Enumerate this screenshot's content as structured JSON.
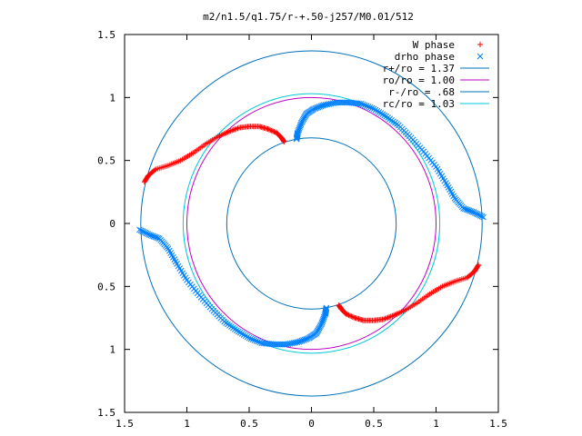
{
  "colors": {
    "w_phase": "#ff0000",
    "drho_phase": "#0080ff",
    "r_plus": "#0070b8",
    "ro": "#c000c0",
    "r_minus": "#0070b8",
    "rc": "#00c8d8",
    "axis": "#000000"
  },
  "chart_data": {
    "type": "scatter",
    "title": "m2/n1.5/q1.75/r-+.50-j257/M0.01/512",
    "xlabel": "",
    "ylabel": "",
    "xlim": [
      -1.5,
      1.5
    ],
    "ylim": [
      -1.5,
      1.5
    ],
    "grid": false,
    "legend_position": "top-right",
    "xtick_values": [
      -1.5,
      -1,
      -0.5,
      0,
      0.5,
      1,
      1.5
    ],
    "xtick_labels": [
      "1.5",
      "1",
      "0.5",
      "0",
      "0.5",
      "1",
      "1.5"
    ],
    "ytick_values": [
      1.5,
      1,
      0.5,
      0,
      -0.5,
      -1,
      -1.5
    ],
    "ytick_labels": [
      "1.5",
      "1",
      "0.5",
      "0",
      "0.5",
      "1",
      "1.5"
    ],
    "legend": [
      {
        "label": "W phase",
        "style": "plus",
        "color_key": "w_phase"
      },
      {
        "label": "drho phase",
        "style": "cross",
        "color_key": "drho_phase"
      },
      {
        "label": "r+/ro = 1.37",
        "style": "line",
        "color_key": "r_plus"
      },
      {
        "label": "ro/ro = 1.00",
        "style": "line",
        "color_key": "ro"
      },
      {
        "label": "r-/ro = .68",
        "style": "line",
        "color_key": "r_minus"
      },
      {
        "label": "rc/ro = 1.03",
        "style": "line",
        "color_key": "rc"
      }
    ],
    "circles": [
      {
        "name": "r+/ro",
        "radius": 1.37,
        "color_key": "r_plus"
      },
      {
        "name": "ro/ro",
        "radius": 1.0,
        "color_key": "ro"
      },
      {
        "name": "r-/ro",
        "radius": 0.68,
        "color_key": "r_minus"
      },
      {
        "name": "rc/ro",
        "radius": 1.03,
        "color_key": "rc"
      }
    ],
    "series": [
      {
        "name": "W phase",
        "marker": "plus",
        "color_key": "w_phase",
        "x": [
          -1.34,
          -1.31,
          -1.25,
          -1.15,
          -1.05,
          -0.95,
          -0.85,
          -0.75,
          -0.66,
          -0.58,
          -0.5,
          -0.42,
          -0.35,
          -0.28,
          -0.24,
          -0.22,
          1.34,
          1.31,
          1.25,
          1.15,
          1.05,
          0.95,
          0.85,
          0.75,
          0.66,
          0.58,
          0.5,
          0.42,
          0.35,
          0.28,
          0.24,
          0.22
        ],
        "y": [
          0.33,
          0.38,
          0.43,
          0.46,
          0.5,
          0.56,
          0.63,
          0.69,
          0.73,
          0.76,
          0.77,
          0.77,
          0.75,
          0.72,
          0.68,
          0.65,
          -0.33,
          -0.38,
          -0.43,
          -0.46,
          -0.5,
          -0.56,
          -0.63,
          -0.69,
          -0.73,
          -0.76,
          -0.77,
          -0.77,
          -0.75,
          -0.72,
          -0.68,
          -0.65
        ]
      },
      {
        "name": "drho phase",
        "marker": "cross",
        "color_key": "drho_phase",
        "x": [
          -0.12,
          -0.11,
          -0.08,
          -0.04,
          0.02,
          0.1,
          0.2,
          0.3,
          0.4,
          0.5,
          0.6,
          0.7,
          0.8,
          0.9,
          1.0,
          1.08,
          1.15,
          1.22,
          1.3,
          1.38,
          0.12,
          0.11,
          0.08,
          0.04,
          -0.02,
          -0.1,
          -0.2,
          -0.3,
          -0.4,
          -0.5,
          -0.6,
          -0.7,
          -0.8,
          -0.9,
          -1.0,
          -1.08,
          -1.15,
          -1.22,
          -1.3,
          -1.38
        ],
        "y": [
          0.67,
          0.72,
          0.8,
          0.87,
          0.91,
          0.94,
          0.96,
          0.96,
          0.95,
          0.91,
          0.85,
          0.78,
          0.68,
          0.57,
          0.45,
          0.32,
          0.2,
          0.12,
          0.09,
          0.05,
          -0.67,
          -0.72,
          -0.8,
          -0.87,
          -0.91,
          -0.94,
          -0.96,
          -0.96,
          -0.95,
          -0.91,
          -0.85,
          -0.78,
          -0.68,
          -0.57,
          -0.45,
          -0.32,
          -0.2,
          -0.12,
          -0.09,
          -0.05
        ]
      }
    ]
  }
}
